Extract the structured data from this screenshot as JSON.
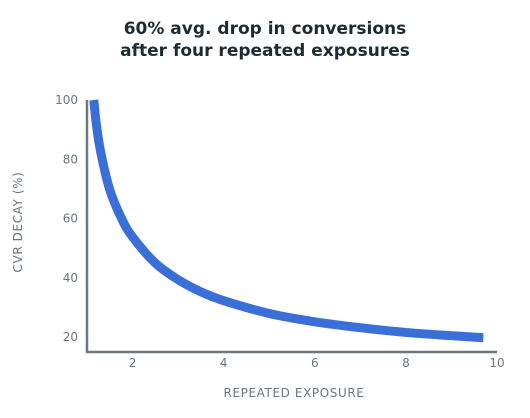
{
  "chart_data": {
    "type": "line",
    "title": "60% avg. drop in conversions",
    "subtitle": "after four repeated exposures",
    "xlabel": "REPEATED EXPOSURE",
    "ylabel": "CVR DECAY (%)",
    "xlim": [
      1,
      10
    ],
    "ylim": [
      15,
      100
    ],
    "x_ticks": [
      "2",
      "4",
      "6",
      "8",
      "10"
    ],
    "y_ticks": [
      "100",
      "80",
      "60",
      "40",
      "20"
    ],
    "grid": false,
    "legend": "none",
    "series": [
      {
        "color": "#3b6fd8",
        "x": [
          1.15,
          1.2,
          1.3,
          1.5,
          1.75,
          2,
          2.5,
          3,
          3.5,
          4,
          5,
          6,
          7,
          8,
          9,
          9.7
        ],
        "y": [
          100,
          92.4,
          82.5,
          69.7,
          60.3,
          53.8,
          45.0,
          39.4,
          35.3,
          32.3,
          28.0,
          25.2,
          23.2,
          21.6,
          20.5,
          19.8
        ]
      }
    ]
  }
}
